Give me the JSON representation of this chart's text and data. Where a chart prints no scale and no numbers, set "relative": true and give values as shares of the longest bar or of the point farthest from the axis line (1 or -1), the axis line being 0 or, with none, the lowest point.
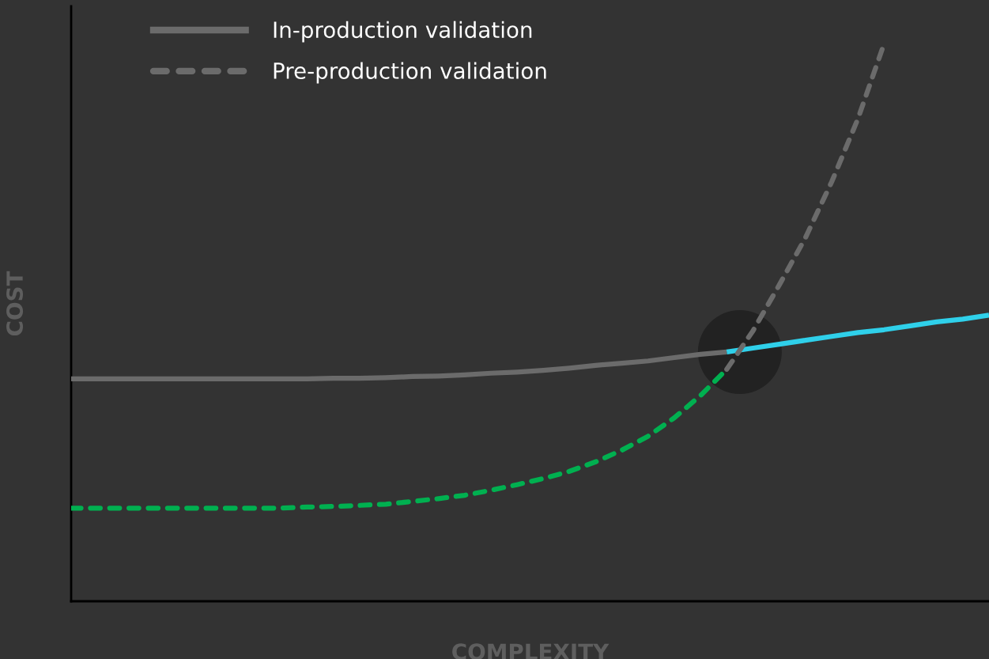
{
  "chart_data": {
    "type": "line",
    "relative": true,
    "xlabel": "COMPLEXITY",
    "ylabel": "COST",
    "legend": "top left",
    "categories": [
      null,
      null,
      null,
      null,
      null,
      null,
      null,
      null,
      null,
      null,
      null,
      null,
      null,
      null,
      null,
      null,
      null,
      null,
      null,
      null,
      null,
      null,
      null,
      null,
      null,
      null,
      null,
      null,
      null,
      null,
      null,
      null,
      null,
      null,
      null,
      null
    ],
    "series": [
      {
        "name": "In-production validation",
        "color": "#6b6b6b",
        "line_style": "solid",
        "values": [
          0.399,
          0.399,
          0.399,
          0.399,
          0.399,
          0.399,
          0.399,
          0.399,
          0.399,
          0.399,
          0.4,
          0.4,
          0.401,
          0.403,
          0.404,
          0.406,
          0.409,
          0.411,
          0.414,
          0.418,
          0.423,
          0.427,
          0.431,
          0.437,
          0.443,
          0.447,
          null,
          null,
          null,
          null,
          null,
          null,
          null,
          null,
          null,
          null
        ]
      },
      {
        "color": "#2fd0ea",
        "line_style": "solid",
        "values": [
          null,
          null,
          null,
          null,
          null,
          null,
          null,
          null,
          null,
          null,
          null,
          null,
          null,
          null,
          null,
          null,
          null,
          null,
          null,
          null,
          null,
          null,
          null,
          null,
          null,
          0.447,
          0.454,
          0.461,
          0.468,
          0.475,
          0.482,
          0.487,
          0.494,
          0.501,
          0.506,
          0.513
        ]
      },
      {
        "name": "Pre-production validation",
        "color": "#6b6b6b",
        "line_style": "dashed",
        "values": [
          null,
          null,
          null,
          null,
          null,
          null,
          null,
          null,
          null,
          null,
          null,
          null,
          null,
          null,
          null,
          null,
          null,
          null,
          null,
          null,
          null,
          null,
          null,
          null,
          null,
          0.416,
          0.485,
          0.567,
          0.652,
          0.752,
          0.865,
          1,
          null,
          null,
          null,
          null
        ]
      },
      {
        "color": "#00b050",
        "line_style": "dashed",
        "values": [
          0.167,
          0.167,
          0.167,
          0.167,
          0.167,
          0.167,
          0.167,
          0.167,
          0.167,
          0.169,
          0.17,
          0.172,
          0.174,
          0.179,
          0.184,
          0.19,
          0.199,
          0.209,
          0.22,
          0.233,
          0.25,
          0.271,
          0.296,
          0.329,
          0.369,
          0.416,
          null,
          null,
          null,
          null,
          null,
          null,
          null,
          null,
          null,
          null
        ]
      }
    ]
  }
}
